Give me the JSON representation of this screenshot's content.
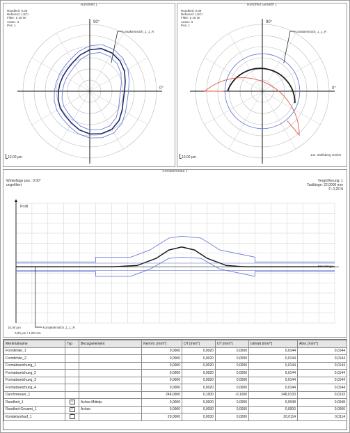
{
  "chart_data": [
    {
      "type": "polar",
      "panel_title": "Rundheit 1",
      "info_lines": [
        "Rundheit: 0,00",
        "Referenz: LSCI",
        "Filter: 1-15 W",
        "Ausw.: 3",
        "Pos: 1"
      ],
      "angle_labels": {
        "top": "90°",
        "right": "0°"
      },
      "callout": "Kontakteinstich_1_1_R",
      "scale": "10,00 µm",
      "rings": 6,
      "spokes": 12,
      "series": [
        {
          "role": "measured",
          "color": "#1f2a6b",
          "radii": [
            0.52,
            0.55,
            0.6,
            0.64,
            0.66,
            0.66,
            0.62,
            0.56,
            0.5,
            0.47,
            0.46,
            0.46,
            0.47,
            0.49,
            0.51,
            0.52,
            0.55,
            0.6,
            0.64,
            0.66,
            0.66,
            0.62,
            0.56,
            0.52
          ]
        },
        {
          "role": "tolerance-inner",
          "color": "#6b7bd6",
          "radii": [
            0.46,
            0.49,
            0.54,
            0.58,
            0.6,
            0.6,
            0.56,
            0.5,
            0.44,
            0.41,
            0.4,
            0.4,
            0.41,
            0.43,
            0.45,
            0.46,
            0.49,
            0.54,
            0.58,
            0.6,
            0.6,
            0.56,
            0.5,
            0.46
          ]
        },
        {
          "role": "tolerance-outer",
          "color": "#6b7bd6",
          "radii": [
            0.58,
            0.61,
            0.66,
            0.7,
            0.72,
            0.72,
            0.68,
            0.62,
            0.56,
            0.53,
            0.52,
            0.52,
            0.53,
            0.55,
            0.57,
            0.58,
            0.61,
            0.66,
            0.7,
            0.72,
            0.72,
            0.68,
            0.62,
            0.58
          ]
        }
      ]
    },
    {
      "type": "polar",
      "panel_title": "Rundheit Gesamt 1",
      "info_lines": [
        "Rundheit: 0,00",
        "Referenz: LSCI",
        "Filter: 1-15 W",
        "Ausw.: 3",
        "Pos: 1"
      ],
      "angle_labels": {
        "top": "90°",
        "right": "0°"
      },
      "callout": "Kontakteinstich_1_1_R",
      "scale": "10,00 µm",
      "company": "Jos. Wolfsberg GmbH",
      "rings": 6,
      "spokes": 12,
      "series": [
        {
          "role": "measured-arc",
          "color": "#1a1a1a",
          "start_deg": -20,
          "end_deg": 180,
          "radius": 0.52
        },
        {
          "role": "tolerance-circle",
          "color": "#6b7bd6",
          "radius": 0.56
        },
        {
          "role": "excluded-region",
          "color": "#e0553d",
          "start_deg": 180,
          "end_deg": 310,
          "radius": 0.86
        }
      ]
    },
    {
      "type": "line",
      "panel_title": "Kontaktvorlauf 1",
      "header_left": [
        "Winkellage pos.: 0.00°",
        "ungefiltert"
      ],
      "header_right": [
        "Vergrößerung: 1",
        "Tastlänge: 22,0000 mm",
        "F: 0,25 N"
      ],
      "ylabel": "Profil",
      "xlabel": "Mesalänge",
      "callout": "Kontakteinstich_1_1_R",
      "scale_y": "10,00 µm",
      "scale_x": "0,00 µm / 1,00 mm",
      "xlim": [
        0,
        100
      ],
      "ylim": [
        -1,
        1
      ],
      "series": [
        {
          "role": "measured",
          "color": "#1a1a1a",
          "x": [
            0,
            8,
            12,
            20,
            30,
            38,
            44,
            48,
            52,
            56,
            60,
            66,
            72,
            80,
            90,
            100
          ],
          "y": [
            -0.06,
            -0.06,
            -0.06,
            -0.06,
            -0.06,
            -0.04,
            0.08,
            0.22,
            0.27,
            0.22,
            0.08,
            -0.04,
            -0.06,
            -0.06,
            -0.06,
            -0.06
          ]
        },
        {
          "role": "tolerance-upper",
          "color": "#6b7bd6",
          "x": [
            0,
            25,
            25,
            36,
            42,
            48,
            52,
            58,
            64,
            75,
            75,
            100
          ],
          "y": [
            0.02,
            0.02,
            0.1,
            0.1,
            0.22,
            0.42,
            0.45,
            0.42,
            0.22,
            0.1,
            0.02,
            0.02
          ]
        },
        {
          "role": "tolerance-lower",
          "color": "#6b7bd6",
          "x": [
            0,
            25,
            25,
            36,
            42,
            48,
            52,
            58,
            64,
            75,
            75,
            100
          ],
          "y": [
            -0.14,
            -0.14,
            -0.22,
            -0.22,
            -0.1,
            0.08,
            0.1,
            0.08,
            -0.1,
            -0.22,
            -0.14,
            -0.14
          ]
        }
      ]
    }
  ],
  "table": {
    "headers": [
      "Merkmalname",
      "Typ",
      "Bezugselement",
      "Nennm. [mm/°]",
      "OT [mm/°]",
      "UT [mm/°]",
      "Istmaß [mm/°]",
      "Abw. [mm/°]"
    ],
    "rows": [
      [
        "Formfehler_1",
        "",
        "",
        "0,0000",
        "0,0020",
        "0,0000",
        "0,0144",
        "0,0144"
      ],
      [
        "Formfehler_2",
        "",
        "",
        "0,0000",
        "0,0020",
        "0,0000",
        "0,0144",
        "0,0144"
      ],
      [
        "Formabweichung_1",
        "",
        "",
        "0,0000",
        "0,0020",
        "0,0000",
        "0,0144",
        "0,0144"
      ],
      [
        "Formabweichung_2",
        "",
        "",
        "0,0000",
        "0,0020",
        "0,0000",
        "0,0144",
        "0,0144"
      ],
      [
        "Formabweichung_3",
        "",
        "",
        "0,0000",
        "0,0020",
        "0,0000",
        "0,0144",
        "0,0144"
      ],
      [
        "Formabweichung_4",
        "",
        "",
        "0,0000",
        "0,0020",
        "0,0000",
        "0,0144",
        "0,0144"
      ],
      [
        "Durchmesser_1",
        "",
        "",
        "248,0000",
        "0,1000",
        "-0,1000",
        "248,0133",
        "0,0133"
      ],
      [
        "Rundheit_1",
        "○",
        "Achse Mittelp.",
        "0,0000",
        "0,0000",
        "0,0000",
        "0,0048",
        "0,0048"
      ],
      [
        "Rundheit Gesamt_1",
        "○",
        "Achse",
        "0,0000",
        "0,0030",
        "0,0000",
        "0,0000",
        "0,0000"
      ],
      [
        "Kontaktvorlauf_1",
        "⌒",
        "",
        "20,0000",
        "0,0030",
        "0,0000",
        "20,0114",
        "0,0114"
      ]
    ]
  }
}
